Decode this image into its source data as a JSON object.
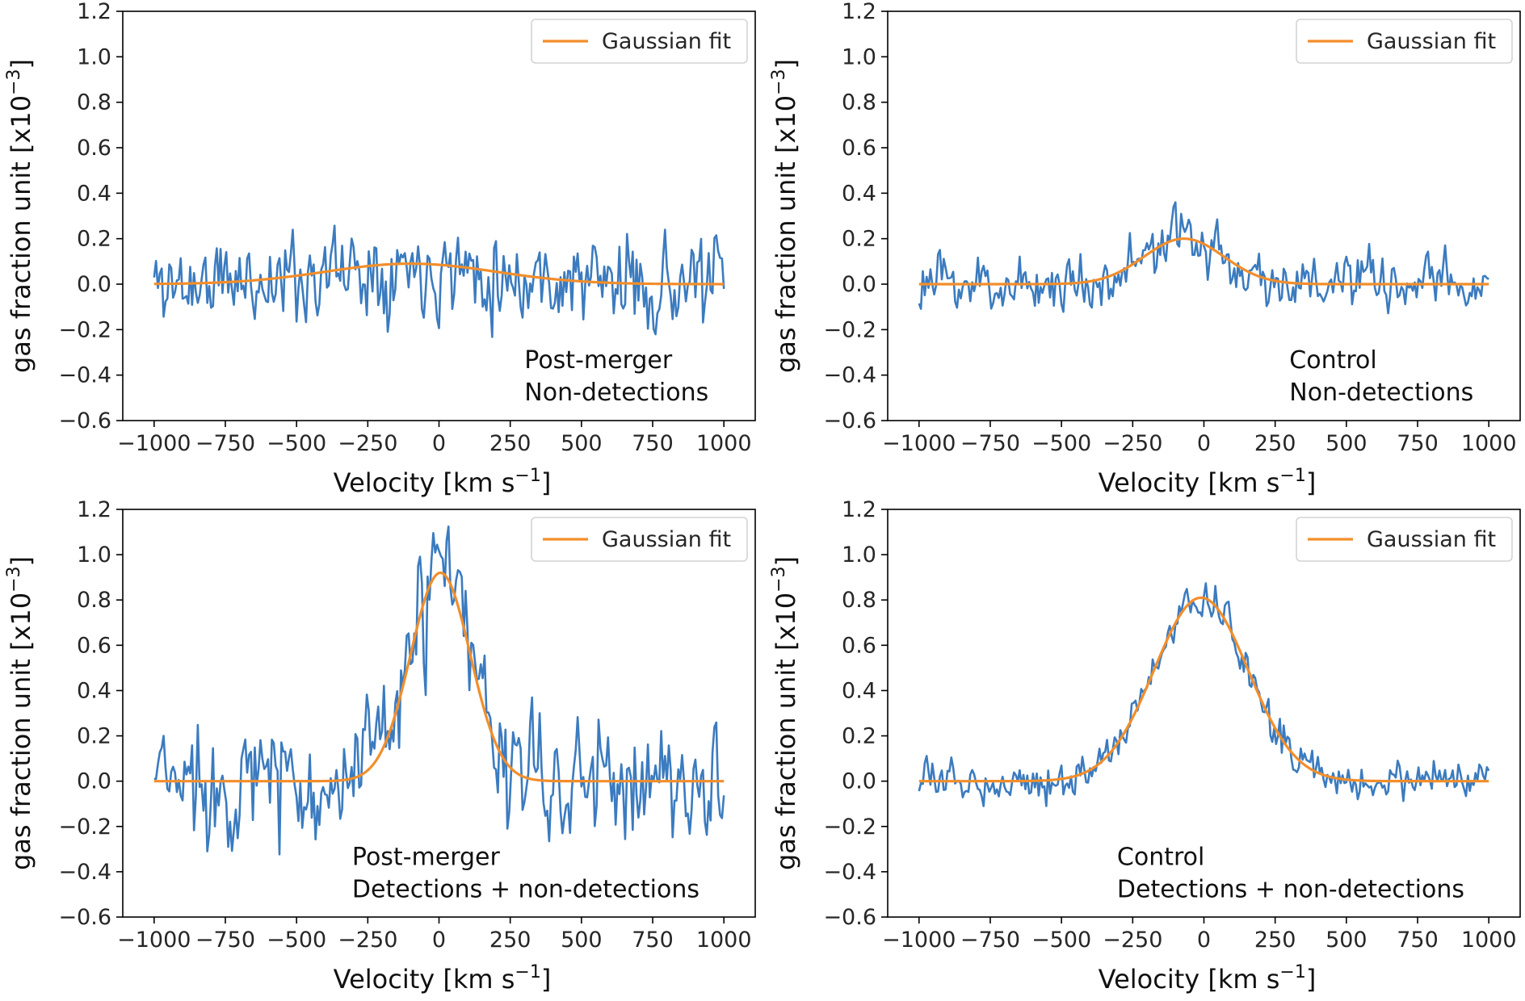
{
  "chart_data": [
    {
      "type": "line",
      "panel": "top-left",
      "xlabel_base": "Velocity [km s",
      "xlabel_sup": "−1",
      "xlabel_end": "]",
      "ylabel_base": "gas fraction unit [x10",
      "ylabel_sup": "−3",
      "ylabel_end": "]",
      "xlim": [
        -1110,
        1110
      ],
      "ylim": [
        -0.6,
        1.2
      ],
      "xticks": [
        -1000,
        -750,
        -500,
        -250,
        0,
        250,
        500,
        750,
        1000
      ],
      "yticks": [
        -0.6,
        -0.4,
        -0.2,
        0.0,
        0.2,
        0.4,
        0.6,
        0.8,
        1.0,
        1.2
      ],
      "legend": {
        "label": "Gaussian fit",
        "position": "upper right"
      },
      "annotation_lines": [
        "Post-merger",
        "Non-detections"
      ],
      "annotation_anchor": {
        "x": 300,
        "y": -0.37
      },
      "series": [
        {
          "name": "stacked spectrum",
          "color": "#3b7bbf",
          "kind": "noisy",
          "gauss": {
            "amp": 0.09,
            "mu": -100,
            "sigma": 300
          },
          "noise": 0.095,
          "seed": 11,
          "n": 300
        },
        {
          "name": "Gaussian fit",
          "color": "#f28e2b",
          "kind": "gaussian",
          "gauss": {
            "amp": 0.09,
            "mu": -100,
            "sigma": 300
          }
        }
      ]
    },
    {
      "type": "line",
      "panel": "top-right",
      "xlabel_base": "Velocity [km s",
      "xlabel_sup": "−1",
      "xlabel_end": "]",
      "ylabel_base": "gas fraction unit [x10",
      "ylabel_sup": "−3",
      "ylabel_end": "]",
      "xlim": [
        -1110,
        1110
      ],
      "ylim": [
        -0.6,
        1.2
      ],
      "xticks": [
        -1000,
        -750,
        -500,
        -250,
        0,
        250,
        500,
        750,
        1000
      ],
      "yticks": [
        -0.6,
        -0.4,
        -0.2,
        0.0,
        0.2,
        0.4,
        0.6,
        0.8,
        1.0,
        1.2
      ],
      "legend": {
        "label": "Gaussian fit",
        "position": "upper right"
      },
      "annotation_lines": [
        "Control",
        "Non-detections"
      ],
      "annotation_anchor": {
        "x": 300,
        "y": -0.37
      },
      "series": [
        {
          "name": "stacked spectrum",
          "color": "#3b7bbf",
          "kind": "noisy",
          "gauss": {
            "amp": 0.2,
            "mu": -70,
            "sigma": 140
          },
          "noise": 0.06,
          "seed": 23,
          "n": 300
        },
        {
          "name": "Gaussian fit",
          "color": "#f28e2b",
          "kind": "gaussian",
          "gauss": {
            "amp": 0.2,
            "mu": -70,
            "sigma": 140
          }
        }
      ]
    },
    {
      "type": "line",
      "panel": "bottom-left",
      "xlabel_base": "Velocity [km s",
      "xlabel_sup": "−1",
      "xlabel_end": "]",
      "ylabel_base": "gas fraction unit [x10",
      "ylabel_sup": "−3",
      "ylabel_end": "]",
      "xlim": [
        -1110,
        1110
      ],
      "ylim": [
        -0.6,
        1.2
      ],
      "xticks": [
        -1000,
        -750,
        -500,
        -250,
        0,
        250,
        500,
        750,
        1000
      ],
      "yticks": [
        -0.6,
        -0.4,
        -0.2,
        0.0,
        0.2,
        0.4,
        0.6,
        0.8,
        1.0,
        1.2
      ],
      "legend": {
        "label": "Gaussian fit",
        "position": "upper right"
      },
      "annotation_lines": [
        "Post-merger",
        "Detections + non-detections"
      ],
      "annotation_anchor": {
        "x": -305,
        "y": -0.37
      },
      "series": [
        {
          "name": "stacked spectrum",
          "color": "#3b7bbf",
          "kind": "noisy",
          "gauss": {
            "amp": 0.92,
            "mu": 5,
            "sigma": 105
          },
          "noise": 0.13,
          "seed": 37,
          "n": 300
        },
        {
          "name": "Gaussian fit",
          "color": "#f28e2b",
          "kind": "gaussian",
          "gauss": {
            "amp": 0.92,
            "mu": 5,
            "sigma": 105
          }
        }
      ]
    },
    {
      "type": "line",
      "panel": "bottom-right",
      "xlabel_base": "Velocity [km s",
      "xlabel_sup": "−1",
      "xlabel_end": "]",
      "ylabel_base": "gas fraction unit [x10",
      "ylabel_sup": "−3",
      "ylabel_end": "]",
      "xlim": [
        -1110,
        1110
      ],
      "ylim": [
        -0.6,
        1.2
      ],
      "xticks": [
        -1000,
        -750,
        -500,
        -250,
        0,
        250,
        500,
        750,
        1000
      ],
      "yticks": [
        -0.6,
        -0.4,
        -0.2,
        0.0,
        0.2,
        0.4,
        0.6,
        0.8,
        1.0,
        1.2
      ],
      "legend": {
        "label": "Gaussian fit",
        "position": "upper right"
      },
      "annotation_lines": [
        "Control",
        "Detections + non-detections"
      ],
      "annotation_anchor": {
        "x": -305,
        "y": -0.37
      },
      "series": [
        {
          "name": "stacked spectrum",
          "color": "#3b7bbf",
          "kind": "noisy",
          "gauss": {
            "amp": 0.81,
            "mu": -10,
            "sigma": 165
          },
          "noise": 0.04,
          "seed": 53,
          "n": 300
        },
        {
          "name": "Gaussian fit",
          "color": "#f28e2b",
          "kind": "gaussian",
          "gauss": {
            "amp": 0.81,
            "mu": -10,
            "sigma": 165
          }
        }
      ]
    }
  ]
}
